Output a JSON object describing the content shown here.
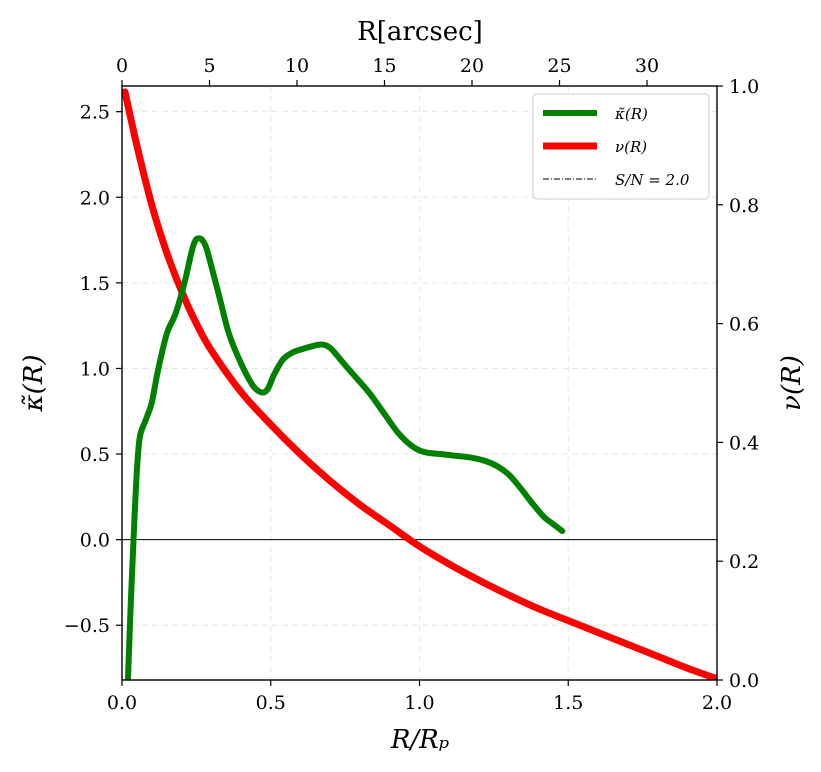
{
  "chart_data": {
    "type": "line",
    "x_bottom": {
      "label": "R/R_p",
      "label_display": "R/Rₚ",
      "range": [
        0.0,
        2.0
      ],
      "ticks": [
        0.0,
        0.5,
        1.0,
        1.5,
        2.0
      ],
      "tick_labels": [
        "0.0",
        "0.5",
        "1.0",
        "1.5",
        "2.0"
      ]
    },
    "x_top": {
      "label": "R[arcsec]",
      "range": [
        0,
        34.0
      ],
      "ticks": [
        0,
        5,
        10,
        15,
        20,
        25,
        30
      ],
      "tick_labels": [
        "0",
        "5",
        "10",
        "15",
        "20",
        "25",
        "30"
      ]
    },
    "y_left": {
      "label": "κ̃(R)",
      "range": [
        -0.82,
        2.65
      ],
      "ticks": [
        -0.5,
        0.0,
        0.5,
        1.0,
        1.5,
        2.0,
        2.5
      ],
      "tick_labels": [
        "−0.5",
        "0.0",
        "0.5",
        "1.0",
        "1.5",
        "2.0",
        "2.5"
      ]
    },
    "y_right": {
      "label": "ν(R)",
      "range": [
        0.0,
        1.0
      ],
      "ticks": [
        0.0,
        0.2,
        0.4,
        0.6,
        0.8,
        1.0
      ],
      "tick_labels": [
        "0.0",
        "0.2",
        "0.4",
        "0.6",
        "0.8",
        "1.0"
      ]
    },
    "grid": true,
    "zero_line": 0.0,
    "legend_position": "upper right",
    "series": [
      {
        "name": "κ̃(R)",
        "axis": "left",
        "color": "#008000",
        "x": [
          0.02,
          0.03,
          0.04,
          0.05,
          0.06,
          0.08,
          0.1,
          0.12,
          0.15,
          0.18,
          0.21,
          0.24,
          0.26,
          0.28,
          0.3,
          0.33,
          0.36,
          0.4,
          0.44,
          0.47,
          0.49,
          0.51,
          0.54,
          0.57,
          0.6,
          0.64,
          0.67,
          0.7,
          0.74,
          0.78,
          0.83,
          0.88,
          0.93,
          0.98,
          1.02,
          1.07,
          1.12,
          1.17,
          1.22,
          1.26,
          1.3,
          1.34,
          1.38,
          1.42,
          1.45,
          1.48
        ],
        "y": [
          -0.82,
          -0.35,
          0.05,
          0.4,
          0.6,
          0.7,
          0.8,
          0.98,
          1.2,
          1.32,
          1.5,
          1.72,
          1.76,
          1.72,
          1.6,
          1.4,
          1.2,
          1.03,
          0.9,
          0.86,
          0.88,
          0.96,
          1.05,
          1.09,
          1.11,
          1.13,
          1.14,
          1.12,
          1.04,
          0.96,
          0.86,
          0.74,
          0.62,
          0.54,
          0.51,
          0.5,
          0.49,
          0.48,
          0.46,
          0.43,
          0.38,
          0.3,
          0.21,
          0.13,
          0.09,
          0.05
        ]
      },
      {
        "name": "ν(R)",
        "axis": "right",
        "color": "#ff0000",
        "x": [
          0.01,
          0.05,
          0.1,
          0.15,
          0.2,
          0.25,
          0.3,
          0.4,
          0.5,
          0.6,
          0.7,
          0.8,
          0.9,
          1.0,
          1.1,
          1.2,
          1.3,
          1.4,
          1.5,
          1.6,
          1.7,
          1.8,
          1.9,
          2.0
        ],
        "y": [
          0.99,
          0.9,
          0.8,
          0.72,
          0.655,
          0.6,
          0.555,
          0.485,
          0.43,
          0.38,
          0.335,
          0.295,
          0.26,
          0.225,
          0.195,
          0.168,
          0.143,
          0.12,
          0.1,
          0.08,
          0.06,
          0.04,
          0.02,
          0.002
        ]
      }
    ],
    "legend": [
      {
        "label": "κ̃(R)",
        "color": "#008000",
        "style": "solid"
      },
      {
        "label": "ν(R)",
        "color": "#ff0000",
        "style": "solid"
      },
      {
        "label": "S/N = 2.0",
        "color": "#000000",
        "style": "dashdot"
      }
    ]
  }
}
